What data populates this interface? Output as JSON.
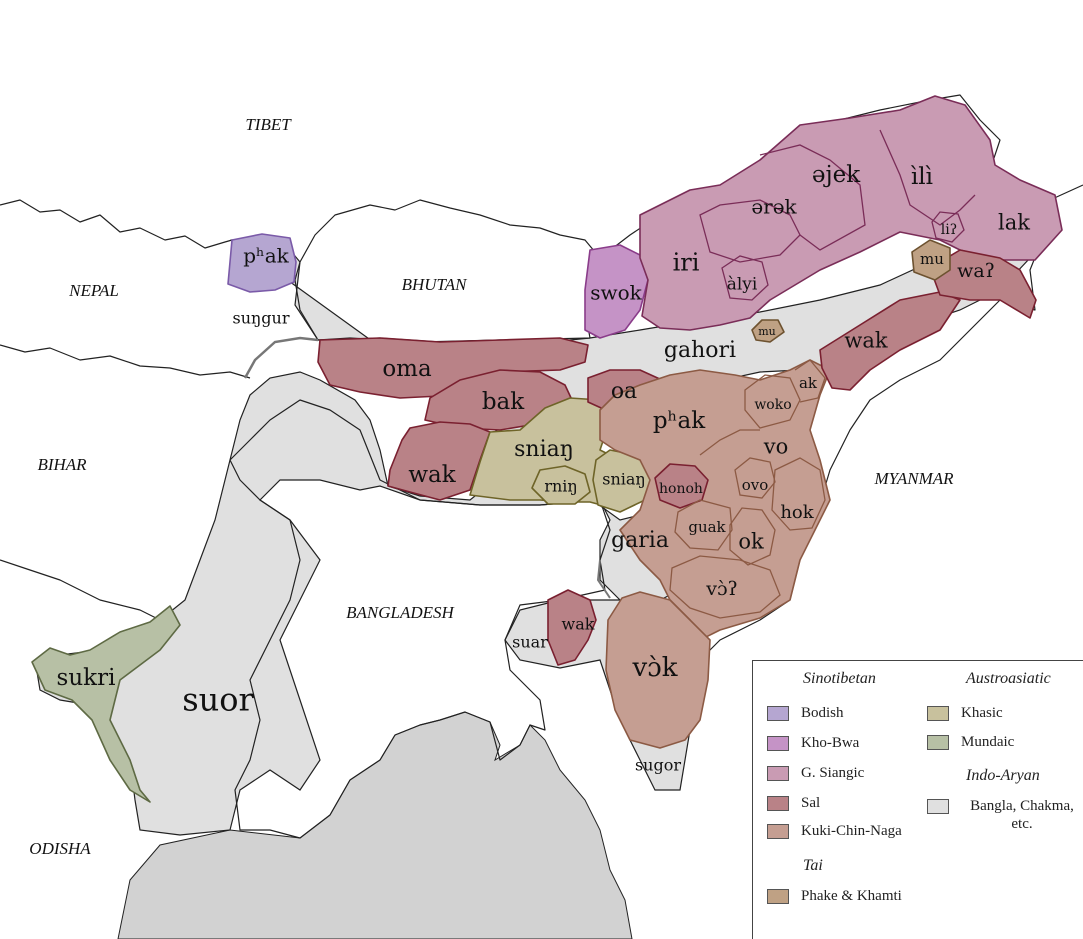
{
  "colors": {
    "bodish": "#b5a6d1",
    "kho_bwa": "#c593c6",
    "g_siangic": "#c99bb3",
    "sal": "#b98287",
    "kuki_chin_naga": "#c59e92",
    "phake_khamti": "#bfa184",
    "khasic": "#c8c19d",
    "mundaic": "#b7c0a5",
    "indo_aryan": "#e0e0e0",
    "sea": "#d2d2d2"
  },
  "countries": {
    "tibet": "TIBET",
    "nepal": "NEPAL",
    "bhutan": "BHUTAN",
    "bihar": "BIHAR",
    "bangladesh": "BANGLADESH",
    "myanmar": "MYANMAR",
    "odisha": "ODISHA"
  },
  "regions": {
    "phak_west": "pʰak",
    "sungur": "suŋgur",
    "oma": "oma",
    "bak": "bak",
    "wak_west": "wak",
    "snian_main": "sniaŋ",
    "rnin": "rniŋ",
    "snian_east": "sniaŋ",
    "oa": "oa",
    "phak_east": "pʰak",
    "gahori": "gahori",
    "swok": "swok",
    "iri": "iri",
    "alyi": "àlyi",
    "arak": "ərək",
    "ajek": "əjek",
    "ili": "ìlì",
    "li": "liʔ",
    "lak": "lak",
    "mu_north": "mu",
    "wa": "waʔ",
    "mu_small": "mu",
    "wak_ne": "wak",
    "ak": "ak",
    "woko": "woko",
    "vo": "vo",
    "honoh": "honoh",
    "ovo": "ovo",
    "hok": "hok",
    "guak": "guak",
    "ok": "ok",
    "garia": "garia",
    "vo_glottal": "vɔ̀ʔ",
    "wak_south": "wak",
    "suar": "suar",
    "vok": "vɔ̀k",
    "sugor": "sugor",
    "sukri": "sukri",
    "suor": "suor"
  },
  "legend": {
    "sinotibetan": "Sinotibetan",
    "austroasiatic": "Austroasiatic",
    "indo_aryan": "Indo-Aryan",
    "tai": "Tai",
    "items": {
      "bodish": "Bodish",
      "kho_bwa": "Kho-Bwa",
      "g_siangic": "G. Siangic",
      "sal": "Sal",
      "kuki_chin_naga": "Kuki-Chin-Naga",
      "khasic": "Khasic",
      "mundaic": "Mundaic",
      "bangla": "Bangla, Chakma, etc.",
      "phake": "Phake & Khamti"
    }
  }
}
